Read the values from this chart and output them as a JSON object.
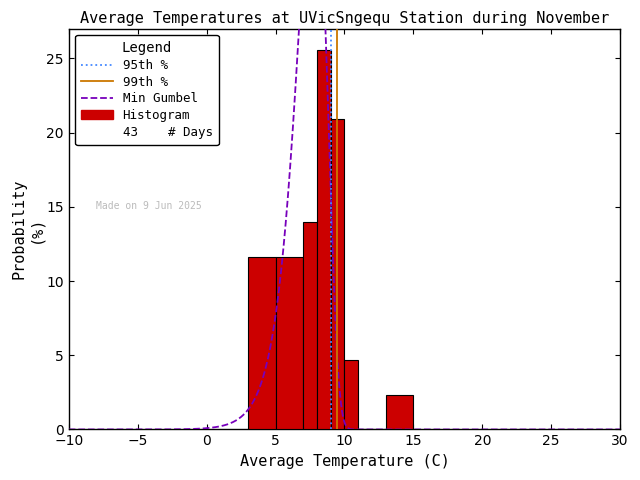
{
  "title": "Average Temperatures at UVicSngequ Station during November",
  "xlabel": "Average Temperature (C)",
  "ylabel": "Probability\n(%)",
  "xlim": [
    -10,
    30
  ],
  "ylim": [
    0,
    27
  ],
  "xticks": [
    -10,
    -5,
    0,
    5,
    10,
    15,
    20,
    25,
    30
  ],
  "yticks": [
    0,
    5,
    10,
    15,
    20,
    25
  ],
  "bg_color": "#ffffff",
  "bar_color": "#cc0000",
  "bar_edge_color": "#000000",
  "bins": [
    3,
    5,
    7,
    8,
    9,
    10,
    11,
    13,
    15
  ],
  "bar_heights": [
    11.63,
    11.63,
    13.95,
    25.58,
    20.93,
    4.65,
    0.0,
    2.33
  ],
  "gumbel_color": "#7700bb",
  "gumbel_lw": 1.3,
  "gumbel_linestyle": "--",
  "p95_color": "#4488ff",
  "p95_lw": 1.3,
  "p95_linestyle": "dotted",
  "p99_color": "#cc7700",
  "p99_lw": 1.3,
  "p99_linestyle": "solid",
  "n_days": 43,
  "watermark": "Made on 9 Jun 2025",
  "legend_title": "Legend",
  "mu": 7.8,
  "beta": 1.1
}
